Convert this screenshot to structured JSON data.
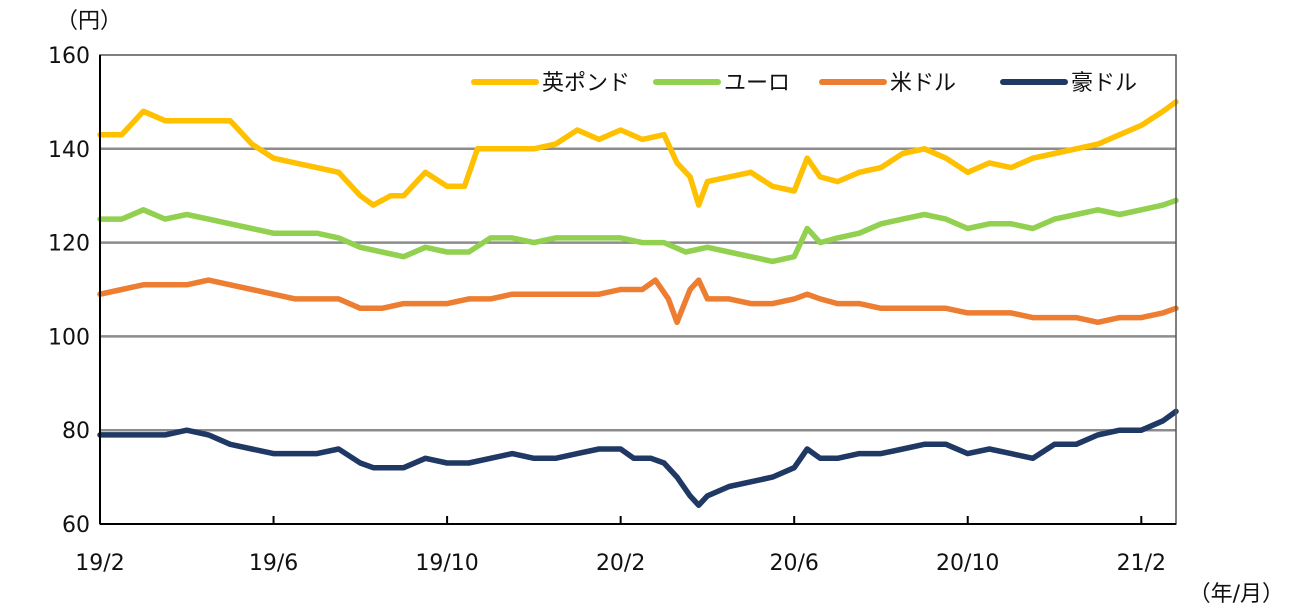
{
  "chart_data": {
    "type": "line",
    "y_unit": "（円）",
    "x_unit": "（年/月）",
    "ylim": [
      60,
      160
    ],
    "y_ticks": [
      "60",
      "80",
      "100",
      "120",
      "140",
      "160"
    ],
    "y_tick_values": [
      60,
      80,
      100,
      120,
      140,
      160
    ],
    "x_ticks": [
      "19/2",
      "19/6",
      "19/10",
      "20/2",
      "20/6",
      "20/10",
      "21/2"
    ],
    "x_tick_month_index": [
      0,
      4,
      8,
      12,
      16,
      20,
      24
    ],
    "x_range_month_index": [
      0,
      24.8
    ],
    "grid": "horizontal",
    "legend_position": "top-right",
    "series": [
      {
        "name": "英ポンド",
        "color": "#FFC000",
        "points": [
          [
            0,
            143
          ],
          [
            0.5,
            143
          ],
          [
            1,
            148
          ],
          [
            1.5,
            146
          ],
          [
            2,
            146
          ],
          [
            2.5,
            146
          ],
          [
            3,
            146
          ],
          [
            3.5,
            141
          ],
          [
            4,
            138
          ],
          [
            4.5,
            137
          ],
          [
            5,
            136
          ],
          [
            5.5,
            135
          ],
          [
            6,
            130
          ],
          [
            6.3,
            128
          ],
          [
            6.7,
            130
          ],
          [
            7,
            130
          ],
          [
            7.5,
            135
          ],
          [
            8,
            132
          ],
          [
            8.4,
            132
          ],
          [
            8.7,
            140
          ],
          [
            9,
            140
          ],
          [
            9.5,
            140
          ],
          [
            10,
            140
          ],
          [
            10.5,
            141
          ],
          [
            11,
            144
          ],
          [
            11.5,
            142
          ],
          [
            12,
            144
          ],
          [
            12.5,
            142
          ],
          [
            13,
            143
          ],
          [
            13.3,
            137
          ],
          [
            13.6,
            134
          ],
          [
            13.8,
            128
          ],
          [
            14,
            133
          ],
          [
            14.5,
            134
          ],
          [
            15,
            135
          ],
          [
            15.5,
            132
          ],
          [
            16,
            131
          ],
          [
            16.3,
            138
          ],
          [
            16.6,
            134
          ],
          [
            17,
            133
          ],
          [
            17.5,
            135
          ],
          [
            18,
            136
          ],
          [
            18.5,
            139
          ],
          [
            19,
            140
          ],
          [
            19.5,
            138
          ],
          [
            20,
            135
          ],
          [
            20.5,
            137
          ],
          [
            21,
            136
          ],
          [
            21.5,
            138
          ],
          [
            22,
            139
          ],
          [
            22.5,
            140
          ],
          [
            23,
            141
          ],
          [
            23.5,
            143
          ],
          [
            24,
            145
          ],
          [
            24.5,
            148
          ],
          [
            24.8,
            150
          ]
        ]
      },
      {
        "name": "ユーロ",
        "color": "#92D050",
        "points": [
          [
            0,
            125
          ],
          [
            0.5,
            125
          ],
          [
            1,
            127
          ],
          [
            1.5,
            125
          ],
          [
            2,
            126
          ],
          [
            2.5,
            125
          ],
          [
            3,
            124
          ],
          [
            3.5,
            123
          ],
          [
            4,
            122
          ],
          [
            4.5,
            122
          ],
          [
            5,
            122
          ],
          [
            5.5,
            121
          ],
          [
            6,
            119
          ],
          [
            6.5,
            118
          ],
          [
            7,
            117
          ],
          [
            7.5,
            119
          ],
          [
            8,
            118
          ],
          [
            8.5,
            118
          ],
          [
            9,
            121
          ],
          [
            9.5,
            121
          ],
          [
            10,
            120
          ],
          [
            10.5,
            121
          ],
          [
            11,
            121
          ],
          [
            11.5,
            121
          ],
          [
            12,
            121
          ],
          [
            12.5,
            120
          ],
          [
            13,
            120
          ],
          [
            13.5,
            118
          ],
          [
            14,
            119
          ],
          [
            14.5,
            118
          ],
          [
            15,
            117
          ],
          [
            15.5,
            116
          ],
          [
            16,
            117
          ],
          [
            16.3,
            123
          ],
          [
            16.6,
            120
          ],
          [
            17,
            121
          ],
          [
            17.5,
            122
          ],
          [
            18,
            124
          ],
          [
            18.5,
            125
          ],
          [
            19,
            126
          ],
          [
            19.5,
            125
          ],
          [
            20,
            123
          ],
          [
            20.5,
            124
          ],
          [
            21,
            124
          ],
          [
            21.5,
            123
          ],
          [
            22,
            125
          ],
          [
            22.5,
            126
          ],
          [
            23,
            127
          ],
          [
            23.5,
            126
          ],
          [
            24,
            127
          ],
          [
            24.5,
            128
          ],
          [
            24.8,
            129
          ]
        ]
      },
      {
        "name": "米ドル",
        "color": "#ED7D31",
        "points": [
          [
            0,
            109
          ],
          [
            0.5,
            110
          ],
          [
            1,
            111
          ],
          [
            1.5,
            111
          ],
          [
            2,
            111
          ],
          [
            2.5,
            112
          ],
          [
            3,
            111
          ],
          [
            3.5,
            110
          ],
          [
            4,
            109
          ],
          [
            4.5,
            108
          ],
          [
            5,
            108
          ],
          [
            5.5,
            108
          ],
          [
            6,
            106
          ],
          [
            6.5,
            106
          ],
          [
            7,
            107
          ],
          [
            7.5,
            107
          ],
          [
            8,
            107
          ],
          [
            8.5,
            108
          ],
          [
            9,
            108
          ],
          [
            9.5,
            109
          ],
          [
            10,
            109
          ],
          [
            10.5,
            109
          ],
          [
            11,
            109
          ],
          [
            11.5,
            109
          ],
          [
            12,
            110
          ],
          [
            12.5,
            110
          ],
          [
            12.8,
            112
          ],
          [
            13.1,
            108
          ],
          [
            13.3,
            103
          ],
          [
            13.6,
            110
          ],
          [
            13.8,
            112
          ],
          [
            14,
            108
          ],
          [
            14.5,
            108
          ],
          [
            15,
            107
          ],
          [
            15.5,
            107
          ],
          [
            16,
            108
          ],
          [
            16.3,
            109
          ],
          [
            16.6,
            108
          ],
          [
            17,
            107
          ],
          [
            17.5,
            107
          ],
          [
            18,
            106
          ],
          [
            18.5,
            106
          ],
          [
            19,
            106
          ],
          [
            19.5,
            106
          ],
          [
            20,
            105
          ],
          [
            20.5,
            105
          ],
          [
            21,
            105
          ],
          [
            21.5,
            104
          ],
          [
            22,
            104
          ],
          [
            22.5,
            104
          ],
          [
            23,
            103
          ],
          [
            23.5,
            104
          ],
          [
            24,
            104
          ],
          [
            24.5,
            105
          ],
          [
            24.8,
            106
          ]
        ]
      },
      {
        "name": "豪ドル",
        "color": "#1F3864",
        "points": [
          [
            0,
            79
          ],
          [
            0.5,
            79
          ],
          [
            1,
            79
          ],
          [
            1.5,
            79
          ],
          [
            2,
            80
          ],
          [
            2.5,
            79
          ],
          [
            3,
            77
          ],
          [
            3.5,
            76
          ],
          [
            4,
            75
          ],
          [
            4.5,
            75
          ],
          [
            5,
            75
          ],
          [
            5.5,
            76
          ],
          [
            6,
            73
          ],
          [
            6.3,
            72
          ],
          [
            6.7,
            72
          ],
          [
            7,
            72
          ],
          [
            7.5,
            74
          ],
          [
            8,
            73
          ],
          [
            8.5,
            73
          ],
          [
            9,
            74
          ],
          [
            9.5,
            75
          ],
          [
            10,
            74
          ],
          [
            10.5,
            74
          ],
          [
            11,
            75
          ],
          [
            11.5,
            76
          ],
          [
            12,
            76
          ],
          [
            12.3,
            74
          ],
          [
            12.7,
            74
          ],
          [
            13,
            73
          ],
          [
            13.3,
            70
          ],
          [
            13.6,
            66
          ],
          [
            13.8,
            64
          ],
          [
            14,
            66
          ],
          [
            14.5,
            68
          ],
          [
            15,
            69
          ],
          [
            15.5,
            70
          ],
          [
            16,
            72
          ],
          [
            16.3,
            76
          ],
          [
            16.6,
            74
          ],
          [
            17,
            74
          ],
          [
            17.5,
            75
          ],
          [
            18,
            75
          ],
          [
            18.5,
            76
          ],
          [
            19,
            77
          ],
          [
            19.5,
            77
          ],
          [
            20,
            75
          ],
          [
            20.5,
            76
          ],
          [
            21,
            75
          ],
          [
            21.5,
            74
          ],
          [
            22,
            77
          ],
          [
            22.5,
            77
          ],
          [
            23,
            79
          ],
          [
            23.5,
            80
          ],
          [
            24,
            80
          ],
          [
            24.5,
            82
          ],
          [
            24.8,
            84
          ]
        ]
      }
    ]
  }
}
